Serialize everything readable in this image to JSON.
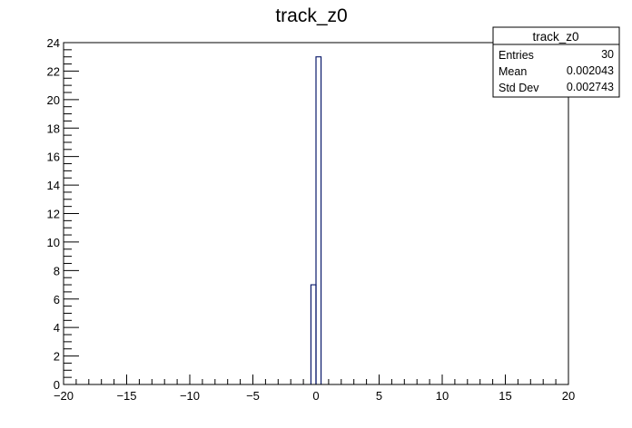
{
  "chart_data": {
    "type": "bar",
    "title": "track_z0",
    "xlabel": "",
    "ylabel": "",
    "xlim": [
      -20,
      20
    ],
    "ylim": [
      0,
      24
    ],
    "x_major_ticks": [
      -20,
      -15,
      -10,
      -5,
      0,
      5,
      10,
      15,
      20
    ],
    "x_minor_step": 1,
    "y_major_ticks": [
      0,
      2,
      4,
      6,
      8,
      10,
      12,
      14,
      16,
      18,
      20,
      22,
      24
    ],
    "y_minor_step": 0.5,
    "grid": false,
    "style": "histogram-step",
    "colors": {
      "line": "#0a1a6b",
      "axis": "#000000",
      "background": "#ffffff"
    },
    "bins": [
      {
        "x_low": -0.4,
        "x_high": 0.0,
        "value": 7
      },
      {
        "x_low": 0.0,
        "x_high": 0.4,
        "value": 23
      }
    ],
    "stats_box": {
      "title": "track_z0",
      "entries_label": "Entries",
      "entries_value": "30",
      "mean_label": "Mean",
      "mean_value": "0.002043",
      "stddev_label": "Std Dev",
      "stddev_value": "0.002743"
    }
  }
}
